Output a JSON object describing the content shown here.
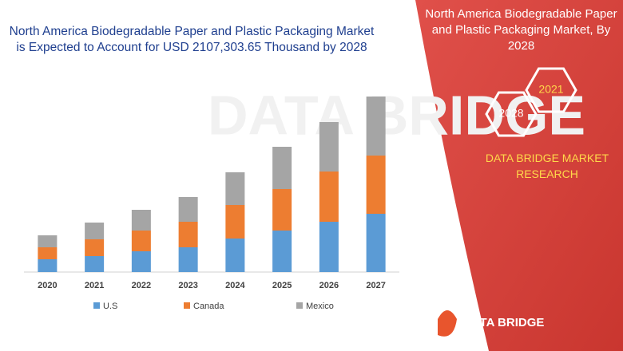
{
  "chart_data": {
    "type": "bar",
    "stacked": true,
    "title": "North America Biodegradable Paper and Plastic Packaging Market is Expected to Account for USD 2107,303.65 Thousand by 2028",
    "categories": [
      "2020",
      "2021",
      "2022",
      "2023",
      "2024",
      "2025",
      "2026",
      "2027"
    ],
    "series": [
      {
        "name": "U.S",
        "color": "#5b9bd5",
        "values": [
          16,
          20,
          26,
          31,
          42,
          52,
          63,
          73
        ]
      },
      {
        "name": "Canada",
        "color": "#ed7d31",
        "values": [
          15,
          21,
          26,
          32,
          42,
          52,
          63,
          73
        ]
      },
      {
        "name": "Mexico",
        "color": "#a5a5a5",
        "values": [
          15,
          21,
          26,
          31,
          41,
          53,
          62,
          74
        ]
      }
    ],
    "ylim": [
      0,
      230
    ]
  },
  "panel": {
    "title": "North America Biodegradable Paper and Plastic Packaging Market, By 2028",
    "hexagons": [
      "2021",
      "2028"
    ],
    "brand": "DATA BRIDGE MARKET RESEARCH",
    "logo": "DATA BRIDGE"
  }
}
